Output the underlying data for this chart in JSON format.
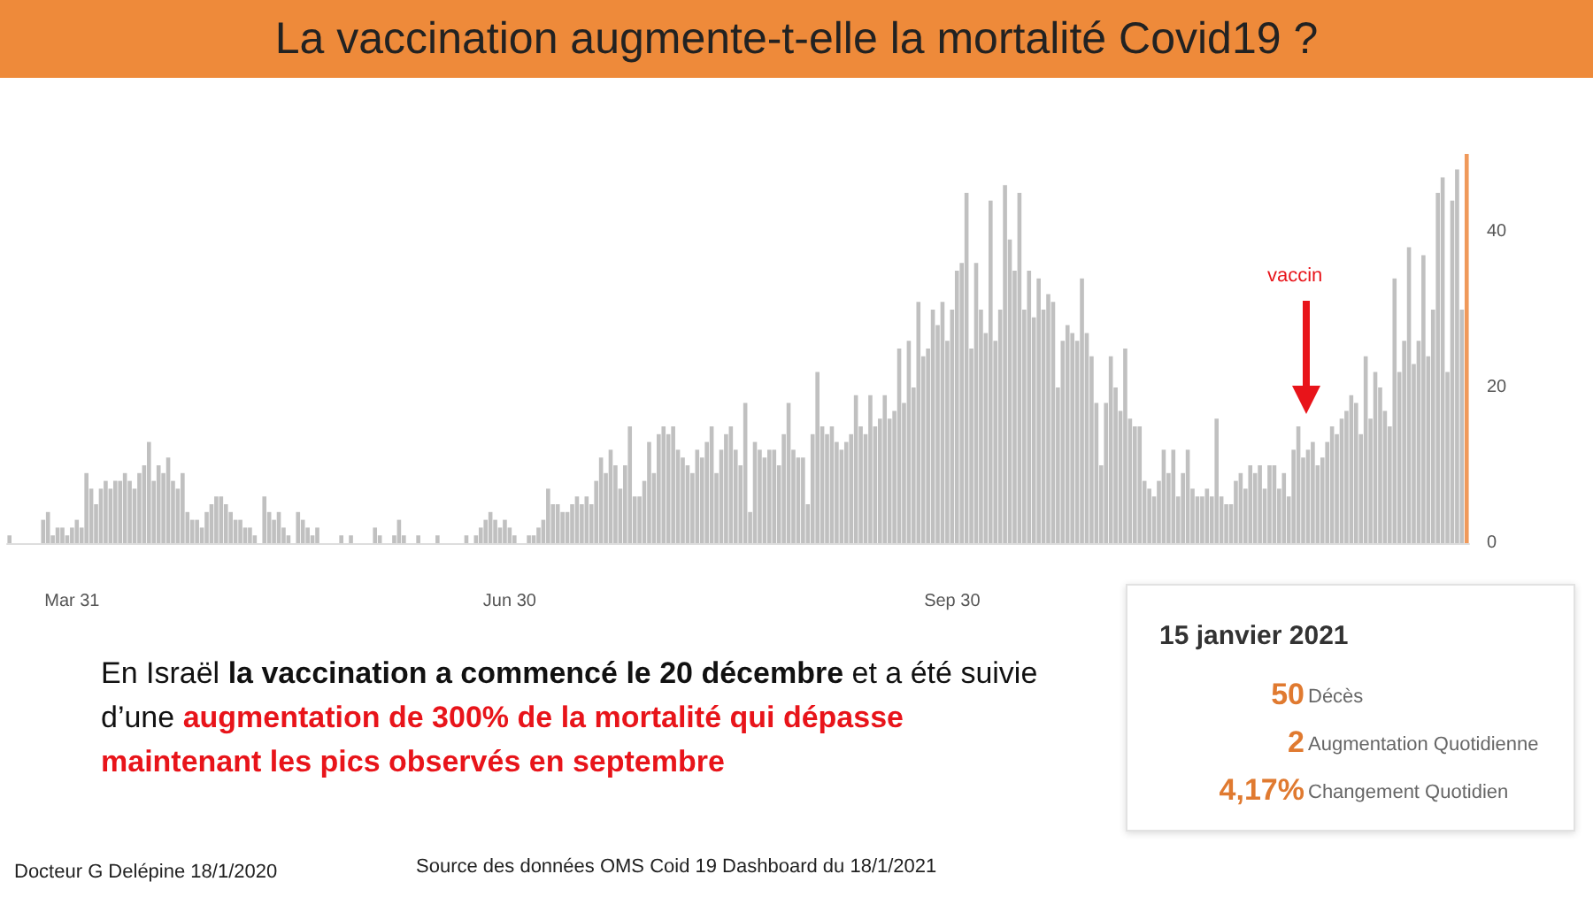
{
  "chart_data": {
    "type": "bar",
    "title": "La vaccination augmente-t-elle la mortalité Covid19 ?",
    "categories": [
      null,
      null,
      null,
      null,
      null,
      null,
      null,
      null,
      null,
      null,
      null,
      null,
      null,
      "Mar 31",
      null,
      null,
      null,
      null,
      null,
      null,
      null,
      null,
      null,
      null,
      null,
      null,
      null,
      null,
      null,
      null,
      null,
      null,
      null,
      null,
      null,
      null,
      null,
      null,
      null,
      null,
      null,
      null,
      null,
      null,
      null,
      null,
      null,
      null,
      null,
      null,
      null,
      null,
      null,
      null,
      null,
      null,
      null,
      null,
      null,
      null,
      null,
      null,
      null,
      null,
      null,
      null,
      null,
      null,
      null,
      null,
      null,
      null,
      null,
      null,
      null,
      null,
      null,
      null,
      null,
      null,
      null,
      null,
      null,
      null,
      null,
      null,
      null,
      null,
      null,
      null,
      null,
      null,
      null,
      null,
      null,
      null,
      null,
      null,
      null,
      null,
      null,
      null,
      null,
      null,
      "Jun 30",
      null,
      null,
      null,
      null,
      null,
      null,
      null,
      null,
      null,
      null,
      null,
      null,
      null,
      null,
      null,
      null,
      null,
      null,
      null,
      null,
      null,
      null,
      null,
      null,
      null,
      null,
      null,
      null,
      null,
      null,
      null,
      null,
      null,
      null,
      null,
      null,
      null,
      null,
      null,
      null,
      null,
      null,
      null,
      null,
      null,
      null,
      null,
      null,
      null,
      null,
      null,
      null,
      null,
      null,
      null,
      null,
      null,
      null,
      null,
      null,
      null,
      null,
      null,
      null,
      null,
      null,
      null,
      null,
      null,
      null,
      null,
      null,
      null,
      null,
      null,
      null,
      null,
      null,
      null,
      null,
      null,
      null,
      null,
      null,
      null,
      null,
      null,
      null,
      null,
      null,
      null,
      "Sep 30",
      null,
      null,
      null,
      null,
      null,
      null,
      null,
      null,
      null,
      null,
      null,
      null,
      null,
      null,
      null,
      null,
      null,
      null,
      null,
      null,
      null,
      null,
      null,
      null,
      null,
      null,
      null,
      null,
      null,
      null,
      null,
      null,
      null,
      null,
      null,
      null,
      null,
      null,
      null,
      null,
      null,
      null,
      null,
      null,
      null,
      null,
      null,
      null,
      null,
      null,
      null,
      null,
      null,
      null,
      null,
      null,
      null,
      null,
      null,
      null,
      null,
      null,
      null,
      null,
      null,
      null,
      null,
      null,
      null,
      null,
      null,
      null,
      null,
      null,
      null,
      null,
      null,
      null,
      null,
      null,
      null,
      null,
      null,
      null,
      null,
      null,
      null,
      null,
      null,
      null,
      null,
      null,
      null,
      null,
      null,
      null,
      null,
      null,
      null,
      null,
      null,
      null,
      null,
      null,
      null,
      null,
      null
    ],
    "values": [
      1,
      0,
      0,
      0,
      0,
      0,
      0,
      3,
      4,
      1,
      2,
      2,
      1,
      2,
      3,
      2,
      9,
      7,
      5,
      7,
      8,
      7,
      8,
      8,
      9,
      8,
      7,
      9,
      10,
      13,
      8,
      10,
      9,
      11,
      8,
      7,
      9,
      4,
      3,
      3,
      2,
      4,
      5,
      6,
      6,
      5,
      4,
      3,
      3,
      2,
      2,
      1,
      0,
      6,
      4,
      3,
      4,
      2,
      1,
      0,
      4,
      3,
      2,
      1,
      2,
      0,
      0,
      0,
      0,
      1,
      0,
      1,
      0,
      0,
      0,
      0,
      2,
      1,
      0,
      0,
      1,
      3,
      1,
      0,
      0,
      1,
      0,
      0,
      0,
      1,
      0,
      0,
      0,
      0,
      0,
      1,
      0,
      1,
      2,
      3,
      4,
      3,
      2,
      3,
      2,
      1,
      0,
      0,
      1,
      1,
      2,
      3,
      7,
      5,
      5,
      4,
      4,
      5,
      6,
      5,
      6,
      5,
      8,
      11,
      9,
      12,
      10,
      7,
      10,
      15,
      6,
      6,
      8,
      13,
      9,
      14,
      15,
      14,
      15,
      12,
      11,
      10,
      9,
      12,
      11,
      13,
      15,
      9,
      12,
      14,
      15,
      12,
      10,
      18,
      4,
      13,
      12,
      11,
      12,
      12,
      10,
      14,
      18,
      12,
      11,
      11,
      5,
      14,
      22,
      15,
      14,
      15,
      13,
      12,
      13,
      14,
      19,
      15,
      14,
      19,
      15,
      16,
      19,
      16,
      17,
      25,
      18,
      26,
      20,
      31,
      24,
      25,
      30,
      28,
      31,
      26,
      30,
      35,
      36,
      45,
      25,
      36,
      30,
      27,
      44,
      26,
      30,
      46,
      39,
      35,
      45,
      30,
      35,
      29,
      34,
      30,
      32,
      31,
      20,
      26,
      28,
      27,
      26,
      34,
      27,
      24,
      18,
      10,
      18,
      24,
      20,
      17,
      25,
      16,
      15,
      15,
      8,
      7,
      6,
      8,
      12,
      9,
      12,
      6,
      9,
      12,
      7,
      6,
      6,
      7,
      6,
      16,
      6,
      5,
      5,
      8,
      9,
      7,
      10,
      9,
      10,
      7,
      10,
      10,
      7,
      9,
      6,
      12,
      15,
      11,
      12,
      13,
      10,
      11,
      13,
      15,
      14,
      16,
      17,
      19,
      18,
      14,
      24,
      16,
      22,
      20,
      17,
      15,
      34,
      22,
      26,
      38,
      23,
      26,
      37,
      24,
      30,
      45,
      47,
      22,
      44,
      48,
      30,
      50
    ],
    "colors": [
      "#c0c0c0",
      "#c0c0c0",
      "#c0c0c0",
      "#c0c0c0",
      "#c0c0c0",
      "#c0c0c0",
      "#c0c0c0",
      "#c0c0c0",
      "#c0c0c0",
      "#c0c0c0",
      "#c0c0c0",
      "#c0c0c0",
      "#c0c0c0",
      "#c0c0c0",
      "#c0c0c0",
      "#c0c0c0",
      "#c0c0c0",
      "#c0c0c0",
      "#c0c0c0",
      "#c0c0c0",
      "#c0c0c0",
      "#c0c0c0",
      "#c0c0c0",
      "#c0c0c0",
      "#c0c0c0",
      "#c0c0c0",
      "#c0c0c0",
      "#c0c0c0",
      "#c0c0c0",
      "#c0c0c0",
      "#c0c0c0",
      "#c0c0c0",
      "#c0c0c0",
      "#c0c0c0",
      "#c0c0c0",
      "#c0c0c0",
      "#c0c0c0",
      "#c0c0c0",
      "#c0c0c0",
      "#c0c0c0",
      "#c0c0c0",
      "#c0c0c0",
      "#c0c0c0",
      "#c0c0c0",
      "#c0c0c0",
      "#c0c0c0",
      "#c0c0c0",
      "#c0c0c0",
      "#c0c0c0",
      "#c0c0c0",
      "#c0c0c0",
      "#c0c0c0",
      "#c0c0c0",
      "#c0c0c0",
      "#c0c0c0",
      "#c0c0c0",
      "#c0c0c0",
      "#c0c0c0",
      "#c0c0c0",
      "#c0c0c0",
      "#c0c0c0",
      "#c0c0c0",
      "#c0c0c0",
      "#c0c0c0",
      "#c0c0c0",
      "#c0c0c0",
      "#c0c0c0",
      "#c0c0c0",
      "#c0c0c0",
      "#c0c0c0",
      "#c0c0c0",
      "#c0c0c0",
      "#c0c0c0",
      "#c0c0c0",
      "#c0c0c0",
      "#c0c0c0",
      "#c0c0c0",
      "#c0c0c0",
      "#c0c0c0",
      "#c0c0c0",
      "#c0c0c0",
      "#c0c0c0",
      "#c0c0c0",
      "#c0c0c0",
      "#c0c0c0",
      "#c0c0c0",
      "#c0c0c0",
      "#c0c0c0",
      "#c0c0c0",
      "#c0c0c0",
      "#c0c0c0",
      "#c0c0c0",
      "#c0c0c0",
      "#c0c0c0",
      "#c0c0c0",
      "#c0c0c0",
      "#c0c0c0",
      "#c0c0c0",
      "#c0c0c0",
      "#c0c0c0",
      "#c0c0c0",
      "#c0c0c0",
      "#c0c0c0",
      "#c0c0c0",
      "#c0c0c0",
      "#c0c0c0",
      "#c0c0c0",
      "#c0c0c0",
      "#c0c0c0",
      "#c0c0c0",
      "#c0c0c0",
      "#c0c0c0",
      "#c0c0c0",
      "#c0c0c0",
      "#c0c0c0",
      "#c0c0c0",
      "#c0c0c0",
      "#c0c0c0",
      "#c0c0c0",
      "#c0c0c0",
      "#c0c0c0",
      "#c0c0c0",
      "#c0c0c0",
      "#c0c0c0",
      "#c0c0c0",
      "#c0c0c0",
      "#c0c0c0",
      "#c0c0c0",
      "#c0c0c0",
      "#c0c0c0",
      "#c0c0c0",
      "#c0c0c0",
      "#c0c0c0",
      "#c0c0c0",
      "#c0c0c0",
      "#c0c0c0",
      "#c0c0c0",
      "#c0c0c0",
      "#c0c0c0",
      "#c0c0c0",
      "#c0c0c0",
      "#c0c0c0",
      "#c0c0c0",
      "#c0c0c0",
      "#c0c0c0",
      "#c0c0c0",
      "#c0c0c0",
      "#c0c0c0",
      "#c0c0c0",
      "#c0c0c0",
      "#c0c0c0",
      "#c0c0c0",
      "#c0c0c0",
      "#c0c0c0",
      "#c0c0c0",
      "#c0c0c0",
      "#c0c0c0",
      "#c0c0c0",
      "#c0c0c0",
      "#c0c0c0",
      "#c0c0c0",
      "#c0c0c0",
      "#c0c0c0",
      "#c0c0c0",
      "#c0c0c0",
      "#c0c0c0",
      "#c0c0c0",
      "#c0c0c0",
      "#c0c0c0",
      "#c0c0c0",
      "#c0c0c0",
      "#c0c0c0",
      "#c0c0c0",
      "#c0c0c0",
      "#c0c0c0",
      "#c0c0c0",
      "#c0c0c0",
      "#c0c0c0",
      "#c0c0c0",
      "#c0c0c0",
      "#c0c0c0",
      "#c0c0c0",
      "#c0c0c0",
      "#c0c0c0",
      "#c0c0c0",
      "#c0c0c0",
      "#c0c0c0",
      "#c0c0c0",
      "#c0c0c0",
      "#c0c0c0",
      "#c0c0c0",
      "#c0c0c0",
      "#c0c0c0",
      "#c0c0c0",
      "#c0c0c0",
      "#c0c0c0",
      "#c0c0c0",
      "#c0c0c0",
      "#c0c0c0",
      "#c0c0c0",
      "#c0c0c0",
      "#c0c0c0",
      "#c0c0c0",
      "#c0c0c0",
      "#c0c0c0",
      "#c0c0c0",
      "#c0c0c0",
      "#c0c0c0",
      "#c0c0c0",
      "#c0c0c0",
      "#c0c0c0",
      "#c0c0c0",
      "#c0c0c0",
      "#c0c0c0",
      "#c0c0c0",
      "#c0c0c0",
      "#c0c0c0",
      "#c0c0c0",
      "#c0c0c0",
      "#c0c0c0",
      "#c0c0c0",
      "#c0c0c0",
      "#c0c0c0",
      "#c0c0c0",
      "#c0c0c0",
      "#c0c0c0",
      "#c0c0c0",
      "#c0c0c0",
      "#c0c0c0",
      "#c0c0c0",
      "#c0c0c0",
      "#c0c0c0",
      "#c0c0c0",
      "#c0c0c0",
      "#c0c0c0",
      "#c0c0c0",
      "#c0c0c0",
      "#c0c0c0",
      "#c0c0c0",
      "#c0c0c0",
      "#c0c0c0",
      "#c0c0c0",
      "#c0c0c0",
      "#c0c0c0",
      "#c0c0c0",
      "#c0c0c0",
      "#c0c0c0",
      "#c0c0c0",
      "#c0c0c0",
      "#c0c0c0",
      "#c0c0c0",
      "#c0c0c0",
      "#c0c0c0",
      "#c0c0c0",
      "#c0c0c0",
      "#c0c0c0",
      "#c0c0c0",
      "#c0c0c0",
      "#c0c0c0",
      "#c0c0c0",
      "#c0c0c0",
      "#c0c0c0",
      "#c0c0c0",
      "#c0c0c0",
      "#c0c0c0",
      "#c0c0c0",
      "#c0c0c0",
      "#c0c0c0",
      "#c0c0c0",
      "#c0c0c0",
      "#c0c0c0",
      "#c0c0c0",
      "#c0c0c0",
      "#c0c0c0",
      "#c0c0c0",
      "#c0c0c0",
      "#c0c0c0",
      "#c0c0c0",
      "#c0c0c0",
      "#c0c0c0",
      "#c0c0c0",
      "#c0c0c0",
      "#c0c0c0",
      "#c0c0c0",
      "#c0c0c0",
      "#c0c0c0",
      "#c0c0c0",
      "#c0c0c0",
      "#c0c0c0",
      "#c0c0c0",
      "#c0c0c0",
      "#c0c0c0",
      "#c0c0c0",
      "#c0c0c0",
      "#c0c0c0",
      "#c0c0c0",
      "#c0c0c0",
      "#c0c0c0",
      "#c0c0c0",
      "#c0c0c0",
      "#c0c0c0",
      "#c0c0c0",
      "#c0c0c0",
      "#f0995a"
    ],
    "ylim": [
      0,
      50
    ],
    "yticks": [
      0,
      20,
      40
    ],
    "annotations": [
      "vaccin",
      "En Israël ",
      "la vaccination a commencé le 20 décembre",
      " et a été suivie d’une ",
      "augmentation de 300% de la mortalité qui dépasse maintenant les pics observés en septembre",
      "15 janvier 2021",
      "50",
      "Décès",
      "2",
      "Augmentation Quotidienne",
      "4,17%",
      "Changement Quotidien",
      "Docteur G Delépine 18/1/2020",
      "Source des données OMS Coid 19 Dashboard du 18/1/2021"
    ]
  }
}
